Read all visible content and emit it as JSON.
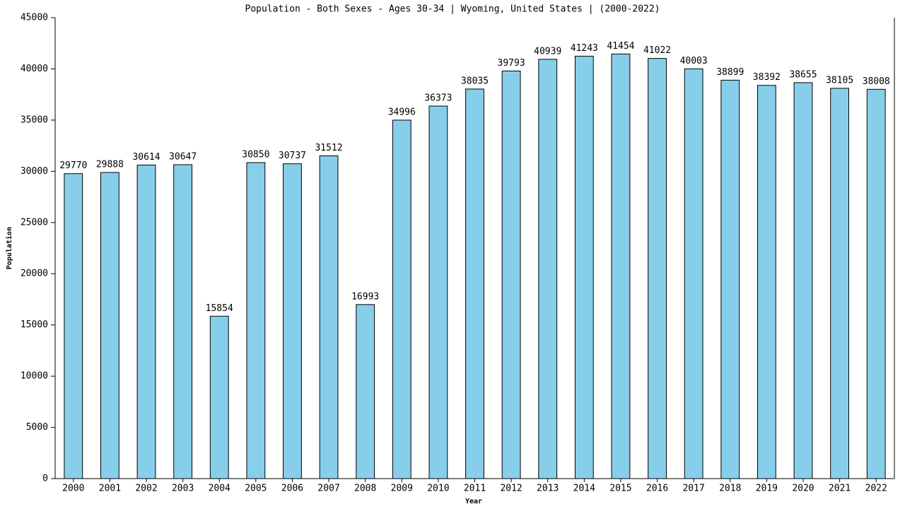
{
  "chart_data": {
    "type": "bar",
    "title": "Population - Both Sexes - Ages 30-34 | Wyoming, United States |  (2000-2022)",
    "x_label": "Year",
    "y_label": "Population",
    "categories": [
      "2000",
      "2001",
      "2002",
      "2003",
      "2004",
      "2005",
      "2006",
      "2007",
      "2008",
      "2009",
      "2010",
      "2011",
      "2012",
      "2013",
      "2014",
      "2015",
      "2016",
      "2017",
      "2018",
      "2019",
      "2020",
      "2021",
      "2022"
    ],
    "values": [
      29770,
      29888,
      30614,
      30647,
      15854,
      30850,
      30737,
      31512,
      16993,
      34996,
      36373,
      38035,
      39793,
      40939,
      41243,
      41454,
      41022,
      40003,
      38899,
      38392,
      38655,
      38105,
      38008
    ],
    "color": "#87ceeb",
    "ylim": [
      0,
      45000
    ],
    "yticks": [
      0,
      5000,
      10000,
      15000,
      20000,
      25000,
      30000,
      35000,
      40000,
      45000
    ]
  }
}
